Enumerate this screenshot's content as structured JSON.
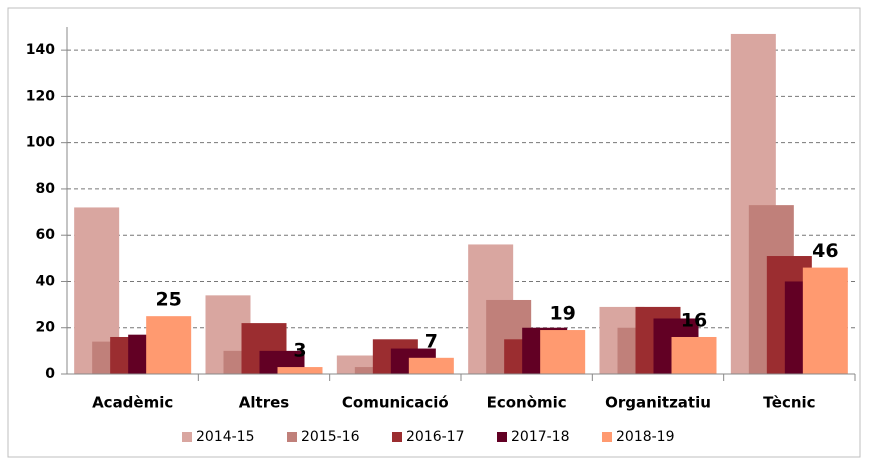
{
  "chart_data": {
    "type": "bar",
    "categories": [
      "Acadèmic",
      "Altres",
      "Comunicació",
      "Econòmic",
      "Organitzatiu",
      "Tècnic"
    ],
    "series": [
      {
        "name": "2014-15",
        "color": "#d9a6a0",
        "values": [
          72,
          34,
          8,
          56,
          29,
          147
        ]
      },
      {
        "name": "2015-16",
        "color": "#c0807a",
        "values": [
          14,
          10,
          3,
          32,
          20,
          73
        ]
      },
      {
        "name": "2016-17",
        "color": "#9b2d30",
        "values": [
          16,
          22,
          15,
          15,
          29,
          51
        ]
      },
      {
        "name": "2017-18",
        "color": "#620024",
        "values": [
          17,
          10,
          11,
          20,
          24,
          40
        ]
      },
      {
        "name": "2018-19",
        "color": "#ff9a70",
        "values": [
          25,
          3,
          7,
          19,
          16,
          46
        ],
        "labels": true
      }
    ],
    "ylim": [
      0,
      150
    ],
    "yticks": [
      0,
      20,
      40,
      60,
      80,
      100,
      120,
      140
    ],
    "grid": true,
    "legend": "bottom"
  }
}
